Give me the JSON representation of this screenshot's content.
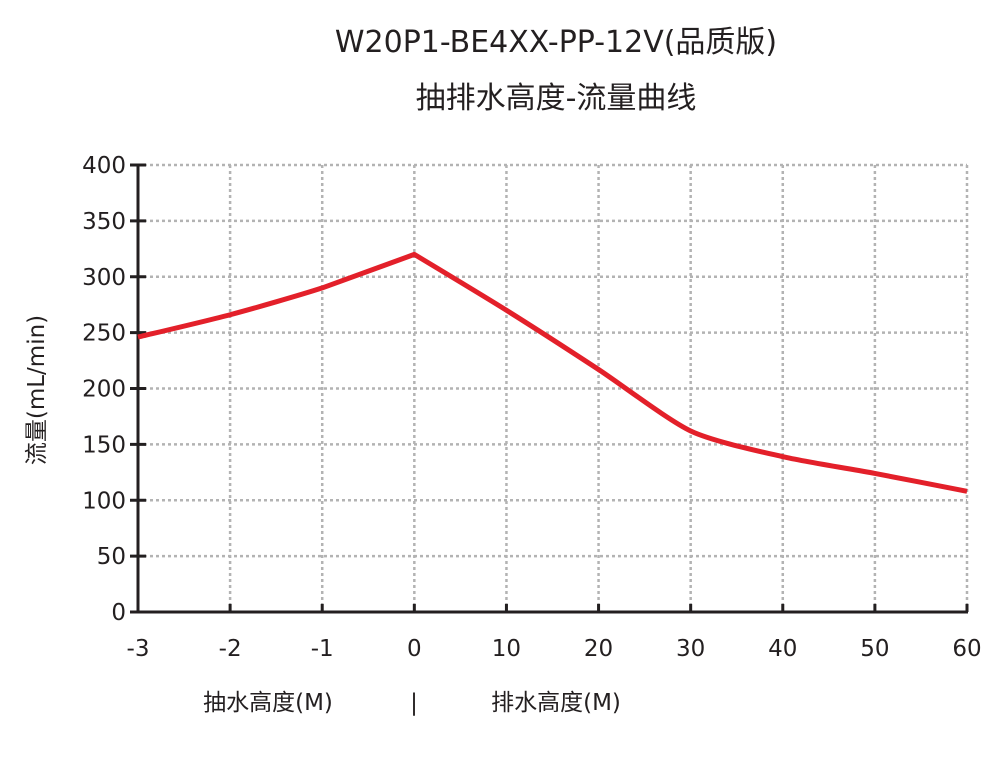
{
  "chart_data": {
    "type": "line",
    "title": "W20P1-BE4XX-PP-12V(品质版)",
    "subtitle": "抽排水高度-流量曲线",
    "ylabel": "流量(mL/min)",
    "xlabel_left": "抽水高度(M)",
    "xlabel_separator": "|",
    "xlabel_right": "排水高度(M)",
    "categories": [
      "-3",
      "-2",
      "-1",
      "0",
      "10",
      "20",
      "30",
      "40",
      "50",
      "60"
    ],
    "values": [
      246,
      266,
      290,
      320,
      270,
      217,
      162,
      139,
      124,
      108
    ],
    "ylim": [
      0,
      400
    ],
    "yticks": [
      "0",
      "50",
      "100",
      "150",
      "200",
      "250",
      "300",
      "350",
      "400"
    ],
    "grid": true,
    "line_color": "#e3202a",
    "grid_color": "#b3b3b3",
    "axis_color": "#231f20"
  }
}
